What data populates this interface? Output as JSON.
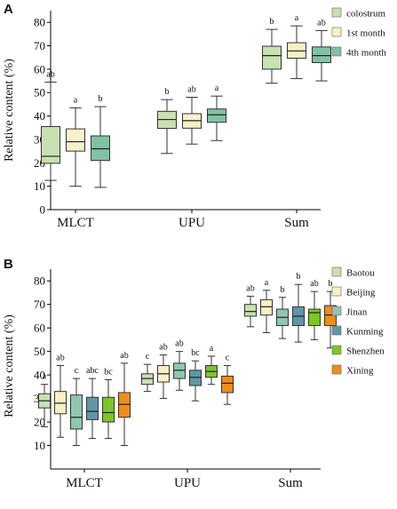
{
  "chart_data": [
    {
      "type": "box",
      "panel_label": "A",
      "ylabel": "Relative content (%)",
      "ylim": [
        0,
        85
      ],
      "yticks": [
        0,
        10,
        20,
        30,
        40,
        50,
        60,
        70,
        80
      ],
      "categories": [
        "MLCT",
        "UPU",
        "Sum"
      ],
      "legend_position": "right",
      "series": [
        {
          "name": "colostrum",
          "color": "#c8e0b2",
          "boxes": [
            {
              "category": "MLCT",
              "min": 12.5,
              "q1": 19.8,
              "median": 22.8,
              "q3": 35.5,
              "max": 54.5,
              "label": "ab"
            },
            {
              "category": "UPU",
              "min": 24.0,
              "q1": 34.7,
              "median": 38.5,
              "q3": 42.0,
              "max": 47.0,
              "label": "b"
            },
            {
              "category": "Sum",
              "min": 54.0,
              "q1": 60.0,
              "median": 65.8,
              "q3": 69.8,
              "max": 77.0,
              "label": "b"
            }
          ]
        },
        {
          "name": "1st month",
          "color": "#f6f1c6",
          "boxes": [
            {
              "category": "MLCT",
              "min": 10.0,
              "q1": 25.0,
              "median": 29.0,
              "q3": 34.5,
              "max": 43.5,
              "label": "a"
            },
            {
              "category": "UPU",
              "min": 28.0,
              "q1": 34.8,
              "median": 38.0,
              "q3": 41.0,
              "max": 48.0,
              "label": "ab"
            },
            {
              "category": "Sum",
              "min": 56.0,
              "q1": 64.7,
              "median": 67.8,
              "q3": 71.3,
              "max": 78.5,
              "label": "a"
            }
          ]
        },
        {
          "name": "4th month",
          "color": "#82c2a4",
          "boxes": [
            {
              "category": "MLCT",
              "min": 9.5,
              "q1": 21.0,
              "median": 26.0,
              "q3": 31.5,
              "max": 44.0,
              "label": "b"
            },
            {
              "category": "UPU",
              "min": 29.5,
              "q1": 37.3,
              "median": 40.5,
              "q3": 43.0,
              "max": 48.5,
              "label": "a"
            },
            {
              "category": "Sum",
              "min": 55.0,
              "q1": 62.8,
              "median": 65.8,
              "q3": 69.5,
              "max": 76.5,
              "label": "ab"
            }
          ]
        }
      ]
    },
    {
      "type": "box",
      "panel_label": "B",
      "ylabel": "Relative content (%)",
      "ylim": [
        0,
        85
      ],
      "yticks": [
        10,
        20,
        30,
        40,
        50,
        60,
        70,
        80
      ],
      "categories": [
        "MLCT",
        "UPU",
        "Sum"
      ],
      "legend_position": "right",
      "series": [
        {
          "name": "Baotou",
          "color": "#c8e0b2",
          "boxes": [
            {
              "category": "MLCT",
              "min": 18.0,
              "q1": 26.0,
              "median": 29.0,
              "q3": 32.0,
              "max": 36.0,
              "label": "a"
            },
            {
              "category": "UPU",
              "min": 33.0,
              "q1": 36.0,
              "median": 38.5,
              "q3": 40.5,
              "max": 44.5,
              "label": "c"
            },
            {
              "category": "Sum",
              "min": 60.5,
              "q1": 65.0,
              "median": 67.0,
              "q3": 70.0,
              "max": 73.5,
              "label": "ab"
            }
          ]
        },
        {
          "name": "Beijing",
          "color": "#f6f1c6",
          "boxes": [
            {
              "category": "MLCT",
              "min": 13.5,
              "q1": 23.5,
              "median": 28.0,
              "q3": 33.0,
              "max": 44.0,
              "label": "ab"
            },
            {
              "category": "UPU",
              "min": 30.0,
              "q1": 37.0,
              "median": 40.5,
              "q3": 44.0,
              "max": 48.5,
              "label": "ab"
            },
            {
              "category": "Sum",
              "min": 58.0,
              "q1": 65.5,
              "median": 69.0,
              "q3": 72.0,
              "max": 76.0,
              "label": "a"
            }
          ]
        },
        {
          "name": "Jinan",
          "color": "#8fc6b0",
          "boxes": [
            {
              "category": "MLCT",
              "min": 10.0,
              "q1": 17.0,
              "median": 22.0,
              "q3": 31.5,
              "max": 38.5,
              "label": "c"
            },
            {
              "category": "UPU",
              "min": 33.5,
              "q1": 38.5,
              "median": 42.0,
              "q3": 45.0,
              "max": 50.0,
              "label": "ab"
            },
            {
              "category": "Sum",
              "min": 55.5,
              "q1": 61.0,
              "median": 64.5,
              "q3": 68.0,
              "max": 73.0,
              "label": "b"
            }
          ]
        },
        {
          "name": "Kunming",
          "color": "#5f97a8",
          "boxes": [
            {
              "category": "MLCT",
              "min": 13.0,
              "q1": 21.0,
              "median": 24.5,
              "q3": 30.5,
              "max": 38.5,
              "label": "abc"
            },
            {
              "category": "UPU",
              "min": 29.0,
              "q1": 35.5,
              "median": 39.0,
              "q3": 42.0,
              "max": 46.0,
              "label": "bc"
            },
            {
              "category": "Sum",
              "min": 54.0,
              "q1": 61.0,
              "median": 65.0,
              "q3": 69.0,
              "max": 78.5,
              "label": "b"
            }
          ]
        },
        {
          "name": "Shenzhen",
          "color": "#7dc626",
          "boxes": [
            {
              "category": "MLCT",
              "min": 13.0,
              "q1": 20.0,
              "median": 24.0,
              "q3": 30.5,
              "max": 38.0,
              "label": "bc"
            },
            {
              "category": "UPU",
              "min": 36.0,
              "q1": 39.0,
              "median": 41.5,
              "q3": 44.0,
              "max": 48.0,
              "label": "a"
            },
            {
              "category": "Sum",
              "min": 55.0,
              "q1": 61.0,
              "median": 66.5,
              "q3": 68.0,
              "max": 75.5,
              "label": "ab"
            }
          ]
        },
        {
          "name": "Xining",
          "color": "#f08c1e",
          "boxes": [
            {
              "category": "MLCT",
              "min": 10.0,
              "q1": 22.0,
              "median": 27.5,
              "q3": 32.5,
              "max": 45.0,
              "label": "ab"
            },
            {
              "category": "UPU",
              "min": 27.5,
              "q1": 32.5,
              "median": 36.5,
              "q3": 39.5,
              "max": 44.0,
              "label": "c"
            },
            {
              "category": "Sum",
              "min": 51.5,
              "q1": 61.0,
              "median": 65.5,
              "q3": 69.5,
              "max": 75.5,
              "label": "b"
            }
          ]
        }
      ]
    }
  ]
}
